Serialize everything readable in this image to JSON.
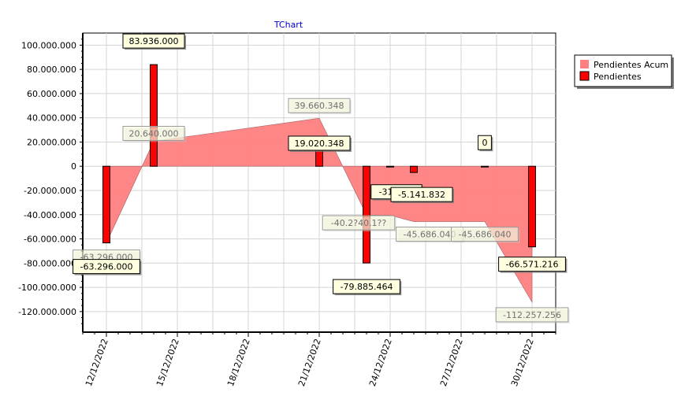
{
  "chart_data": {
    "type": "bar",
    "title": "TChart",
    "xlabel": "",
    "ylabel": "",
    "ylim": [
      -137000000,
      110000000
    ],
    "y_ticks": [
      100000000,
      80000000,
      60000000,
      40000000,
      20000000,
      0,
      -20000000,
      -40000000,
      -60000000,
      -80000000,
      -100000000,
      -120000000
    ],
    "y_tick_labels": [
      "100.000.000",
      "80.000.000",
      "60.000.000",
      "40.000.000",
      "20.000.000",
      "0",
      "-20.000.000",
      "-40.000.000",
      "-60.000.000",
      "-80.000.000",
      "-100.000.000",
      "-120.000.000"
    ],
    "xlim": [
      "2022-12-11",
      "2022-12-31"
    ],
    "x_ticks": [
      "2022-12-12",
      "2022-12-15",
      "2022-12-18",
      "2022-12-21",
      "2022-12-24",
      "2022-12-27",
      "2022-12-30"
    ],
    "x_tick_labels": [
      "12/12/2022",
      "15/12/2022",
      "18/12/2022",
      "21/12/2022",
      "24/12/2022",
      "27/12/2022",
      "30/12/2022"
    ],
    "grid": true,
    "legend": "right",
    "series": [
      {
        "name": "Pendientes Acum",
        "type": "area",
        "color": "#ff8080",
        "points": [
          {
            "x": "2022-12-12",
            "y": -63296000,
            "label": "-63.296.000"
          },
          {
            "x": "2022-12-14",
            "y": 20640000,
            "label": "20.640.000"
          },
          {
            "x": "2022-12-21",
            "y": 39660348,
            "label": "39.660.348"
          },
          {
            "x": "2022-12-23",
            "y": -40225116,
            "label": "-40.2?40.1??"
          },
          {
            "x": "2022-12-24",
            "y": -40540000,
            "label": ""
          },
          {
            "x": "2022-12-25",
            "y": -45686040,
            "label": "-45.686.040"
          },
          {
            "x": "2022-12-28",
            "y": -45686040,
            "label": "-45.686.040"
          },
          {
            "x": "2022-12-30",
            "y": -112257256,
            "label": "-112.257.256"
          }
        ]
      },
      {
        "name": "Pendientes",
        "type": "bar",
        "color": "#ff0000",
        "points": [
          {
            "x": "2022-12-12",
            "y": -63296000,
            "label": "-63.296.000"
          },
          {
            "x": "2022-12-14",
            "y": 83936000,
            "label": "83.936.000"
          },
          {
            "x": "2022-12-21",
            "y": 19020348,
            "label": "19.020.348"
          },
          {
            "x": "2022-12-23",
            "y": -79885464,
            "label": "-79.885.464"
          },
          {
            "x": "2022-12-24",
            "y": -315000,
            "label": "-31?.???"
          },
          {
            "x": "2022-12-25",
            "y": -5141832,
            "label": "-5.141.832"
          },
          {
            "x": "2022-12-28",
            "y": 0,
            "label": "0"
          },
          {
            "x": "2022-12-30",
            "y": -66571216,
            "label": "-66.571.216"
          }
        ]
      }
    ]
  }
}
